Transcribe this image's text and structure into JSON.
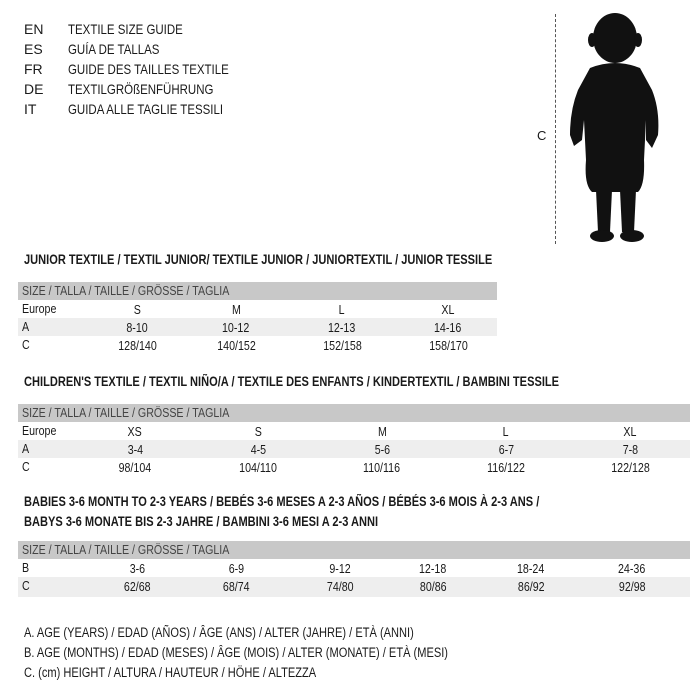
{
  "languages": [
    {
      "code": "EN",
      "title": "TEXTILE SIZE GUIDE"
    },
    {
      "code": "ES",
      "title": "GUÍA DE TALLAS"
    },
    {
      "code": "FR",
      "title": "GUIDE DES TAILLES TEXTILE"
    },
    {
      "code": "DE",
      "title": "TEXTILGRÖßENFÜHRUNG"
    },
    {
      "code": "IT",
      "title": "GUIDA ALLE TAGLIE TESSILI"
    }
  ],
  "figure": {
    "measure_label": "C"
  },
  "junior": {
    "title": "JUNIOR TEXTILE / TEXTIL JUNIOR/ TEXTILE JUNIOR / JUNIORTEXTIL / JUNIOR TESSILE",
    "header": "SIZE / TALLA / TAILLE / GRÖSSE / TAGLIA",
    "rows": [
      {
        "label": "Europe",
        "values": [
          "S",
          "M",
          "L",
          "XL"
        ]
      },
      {
        "label": "A",
        "values": [
          "8-10",
          "10-12",
          "12-13",
          "14-16"
        ]
      },
      {
        "label": "C",
        "values": [
          "128/140",
          "140/152",
          "152/158",
          "158/170"
        ]
      }
    ]
  },
  "children": {
    "title": "CHILDREN'S TEXTILE / TEXTIL NIÑO/A / TEXTILE DES ENFANTS / KINDERTEXTIL / BAMBINI TESSILE",
    "header": "SIZE / TALLA / TAILLE / GRÖSSE / TAGLIA",
    "rows": [
      {
        "label": "Europe",
        "values": [
          "XS",
          "S",
          "M",
          "L",
          "XL"
        ]
      },
      {
        "label": "A",
        "values": [
          "3-4",
          "4-5",
          "5-6",
          "6-7",
          "7-8"
        ]
      },
      {
        "label": "C",
        "values": [
          "98/104",
          "104/110",
          "110/116",
          "116/122",
          "122/128"
        ]
      }
    ]
  },
  "babies": {
    "title_line1": "BABIES 3-6 MONTH TO 2-3 YEARS / BEBÉS 3-6 MESES A 2-3 AÑOS / BÉBÉS 3-6 MOIS À 2-3 ANS /",
    "title_line2": "BABYS 3-6 MONATE BIS 2-3 JAHRE / BAMBINI 3-6 MESI A 2-3 ANNI",
    "header": "SIZE / TALLA / TAILLE / GRÖSSE / TAGLIA",
    "rows": [
      {
        "label": "B",
        "values": [
          "3-6",
          "6-9",
          "9-12",
          "12-18",
          "18-24",
          "24-36"
        ]
      },
      {
        "label": "C",
        "values": [
          "62/68",
          "68/74",
          "74/80",
          "80/86",
          "86/92",
          "92/98"
        ]
      }
    ]
  },
  "legend": [
    "A. AGE (YEARS) / EDAD (AÑOS) / ÂGE (ANS) / ALTER (JAHRE) / ETÀ (ANNI)",
    "B. AGE (MONTHS) / EDAD (MESES) / ÂGE (MOIS) / ALTER (MONATE) / ETÀ (MESI)",
    "C. (cm) HEIGHT / ALTURA / HAUTEUR / HÖHE / ALTEZZA"
  ]
}
